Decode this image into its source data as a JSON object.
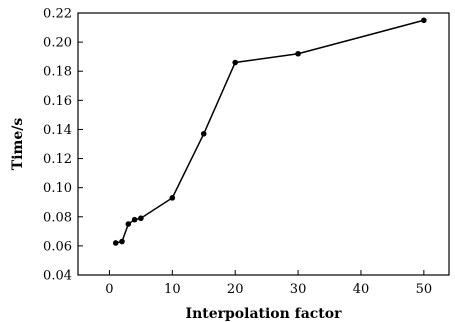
{
  "chart_data": {
    "type": "line",
    "title": "",
    "xlabel": "Interpolation factor",
    "ylabel": "Time/s",
    "xlim": [
      -5,
      54
    ],
    "ylim": [
      0.04,
      0.22
    ],
    "x_ticks": [
      0,
      10,
      20,
      30,
      40,
      50
    ],
    "y_ticks": [
      0.04,
      0.06,
      0.08,
      0.1,
      0.12,
      0.14,
      0.16,
      0.18,
      0.2,
      0.22
    ],
    "x_tick_labels": [
      "0",
      "10",
      "20",
      "30",
      "40",
      "50"
    ],
    "y_tick_labels": [
      "0.04",
      "0.06",
      "0.08",
      "0.10",
      "0.12",
      "0.14",
      "0.16",
      "0.18",
      "0.20",
      "0.22"
    ],
    "grid": false,
    "legend": "none",
    "series": [
      {
        "x": [
          1,
          2,
          3,
          4,
          5,
          10,
          15,
          20,
          30,
          50
        ],
        "y": [
          0.062,
          0.063,
          0.075,
          0.078,
          0.079,
          0.093,
          0.137,
          0.186,
          0.192,
          0.215
        ]
      }
    ]
  }
}
